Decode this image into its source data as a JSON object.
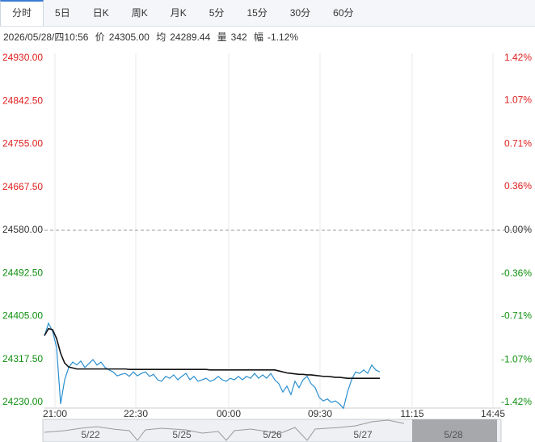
{
  "tabs": [
    "分时",
    "5日",
    "日K",
    "周K",
    "月K",
    "5分",
    "15分",
    "30分",
    "60分"
  ],
  "selected_tab": 0,
  "info": {
    "time": "2026/05/28/四10:56",
    "price_label": "价",
    "price": "24305.00",
    "avg_label": "均",
    "avg": "24289.44",
    "vol_label": "量",
    "vol": "342",
    "amp_label": "幅",
    "amp": "-1.12%"
  },
  "chart_data": {
    "type": "line",
    "xlim": [
      0,
      113
    ],
    "xticks": [
      {
        "value": 2.6,
        "label": "21:00"
      },
      {
        "value": 22.6,
        "label": "22:30"
      },
      {
        "value": 45.6,
        "label": "00:00"
      },
      {
        "value": 68.2,
        "label": "09:30"
      },
      {
        "value": 91,
        "label": "11:15"
      },
      {
        "value": 111,
        "label": "14:45"
      }
    ],
    "ylim": [
      24230,
      24930
    ],
    "yticks": [
      {
        "value": 24930,
        "label": "24930.00"
      },
      {
        "value": 24842.5,
        "label": "24842.50"
      },
      {
        "value": 24755,
        "label": "24755.00"
      },
      {
        "value": 24667.5,
        "label": "24667.50"
      },
      {
        "value": 24580,
        "label": "24580.00"
      },
      {
        "value": 24492.5,
        "label": "24492.50"
      },
      {
        "value": 24405,
        "label": "24405.00"
      },
      {
        "value": 24317.5,
        "label": "24317.50"
      },
      {
        "value": 24230,
        "label": "24230.00"
      }
    ],
    "y2lim": [
      -1.42,
      1.42
    ],
    "y2ticks": [
      {
        "value": 1.42,
        "label": "1.42%"
      },
      {
        "value": 1.07,
        "label": "1.07%"
      },
      {
        "value": 0.71,
        "label": "0.71%"
      },
      {
        "value": 0.36,
        "label": "0.36%"
      },
      {
        "value": 0,
        "label": "0.00%"
      },
      {
        "value": -0.36,
        "label": "-0.36%"
      },
      {
        "value": -0.71,
        "label": "-0.71%"
      },
      {
        "value": -1.07,
        "label": "-1.07%"
      },
      {
        "value": -1.42,
        "label": "-1.42%"
      }
    ],
    "baseline": 24580,
    "up_color": "#e02020",
    "down_color": "#109010",
    "flat_color": "#333333",
    "grid": true,
    "series": [
      {
        "name": "价",
        "color": "#2a8fd0",
        "values": [
          24365,
          24391,
          24375,
          24342,
          24227,
          24276,
          24301,
          24312,
          24306,
          24314,
          24301,
          24309,
          24317,
          24306,
          24312,
          24301,
          24296,
          24292,
          24284,
          24287,
          24289,
          24283,
          24292,
          24284,
          24289,
          24292,
          24283,
          24287,
          24276,
          24273,
          24283,
          24279,
          24286,
          24276,
          24283,
          24289,
          24276,
          24283,
          24273,
          24276,
          24279,
          24273,
          24276,
          24283,
          24276,
          24273,
          24279,
          24276,
          24283,
          24276,
          24283,
          24279,
          24289,
          24279,
          24286,
          24279,
          24289,
          24276,
          24268,
          24251,
          24263,
          24246,
          24273,
          24260,
          24276,
          24283,
          24268,
          24260,
          24240,
          24233,
          24237,
          24230,
          24233,
          24227,
          24218,
          24251,
          24276,
          24292,
          24289,
          24296,
          24289,
          24306,
          24296,
          24292
        ]
      },
      {
        "name": "均",
        "color": "#111111",
        "values": [
          24366,
          24380,
          24378,
          24360,
          24330,
          24310,
          24302,
          24300,
          24298,
          24298,
          24298,
          24298,
          24298,
          24298,
          24298,
          24298,
          24298,
          24298,
          24298,
          24298,
          24298,
          24297,
          24297,
          24297,
          24297,
          24297,
          24297,
          24297,
          24297,
          24297,
          24297,
          24297,
          24297,
          24297,
          24297,
          24297,
          24297,
          24297,
          24297,
          24297,
          24297,
          24296,
          24296,
          24296,
          24296,
          24296,
          24296,
          24296,
          24296,
          24296,
          24296,
          24296,
          24296,
          24296,
          24296,
          24296,
          24296,
          24296,
          24294,
          24292,
          24290,
          24289,
          24288,
          24287,
          24287,
          24286,
          24286,
          24285,
          24284,
          24283,
          24283,
          24282,
          24281,
          24281,
          24280,
          24279,
          24279,
          24279,
          24279,
          24279,
          24279,
          24279,
          24279,
          24279
        ]
      }
    ]
  },
  "navigator": {
    "labels": [
      "5/22",
      "5/25",
      "5/26",
      "5/27",
      "5/28"
    ]
  }
}
